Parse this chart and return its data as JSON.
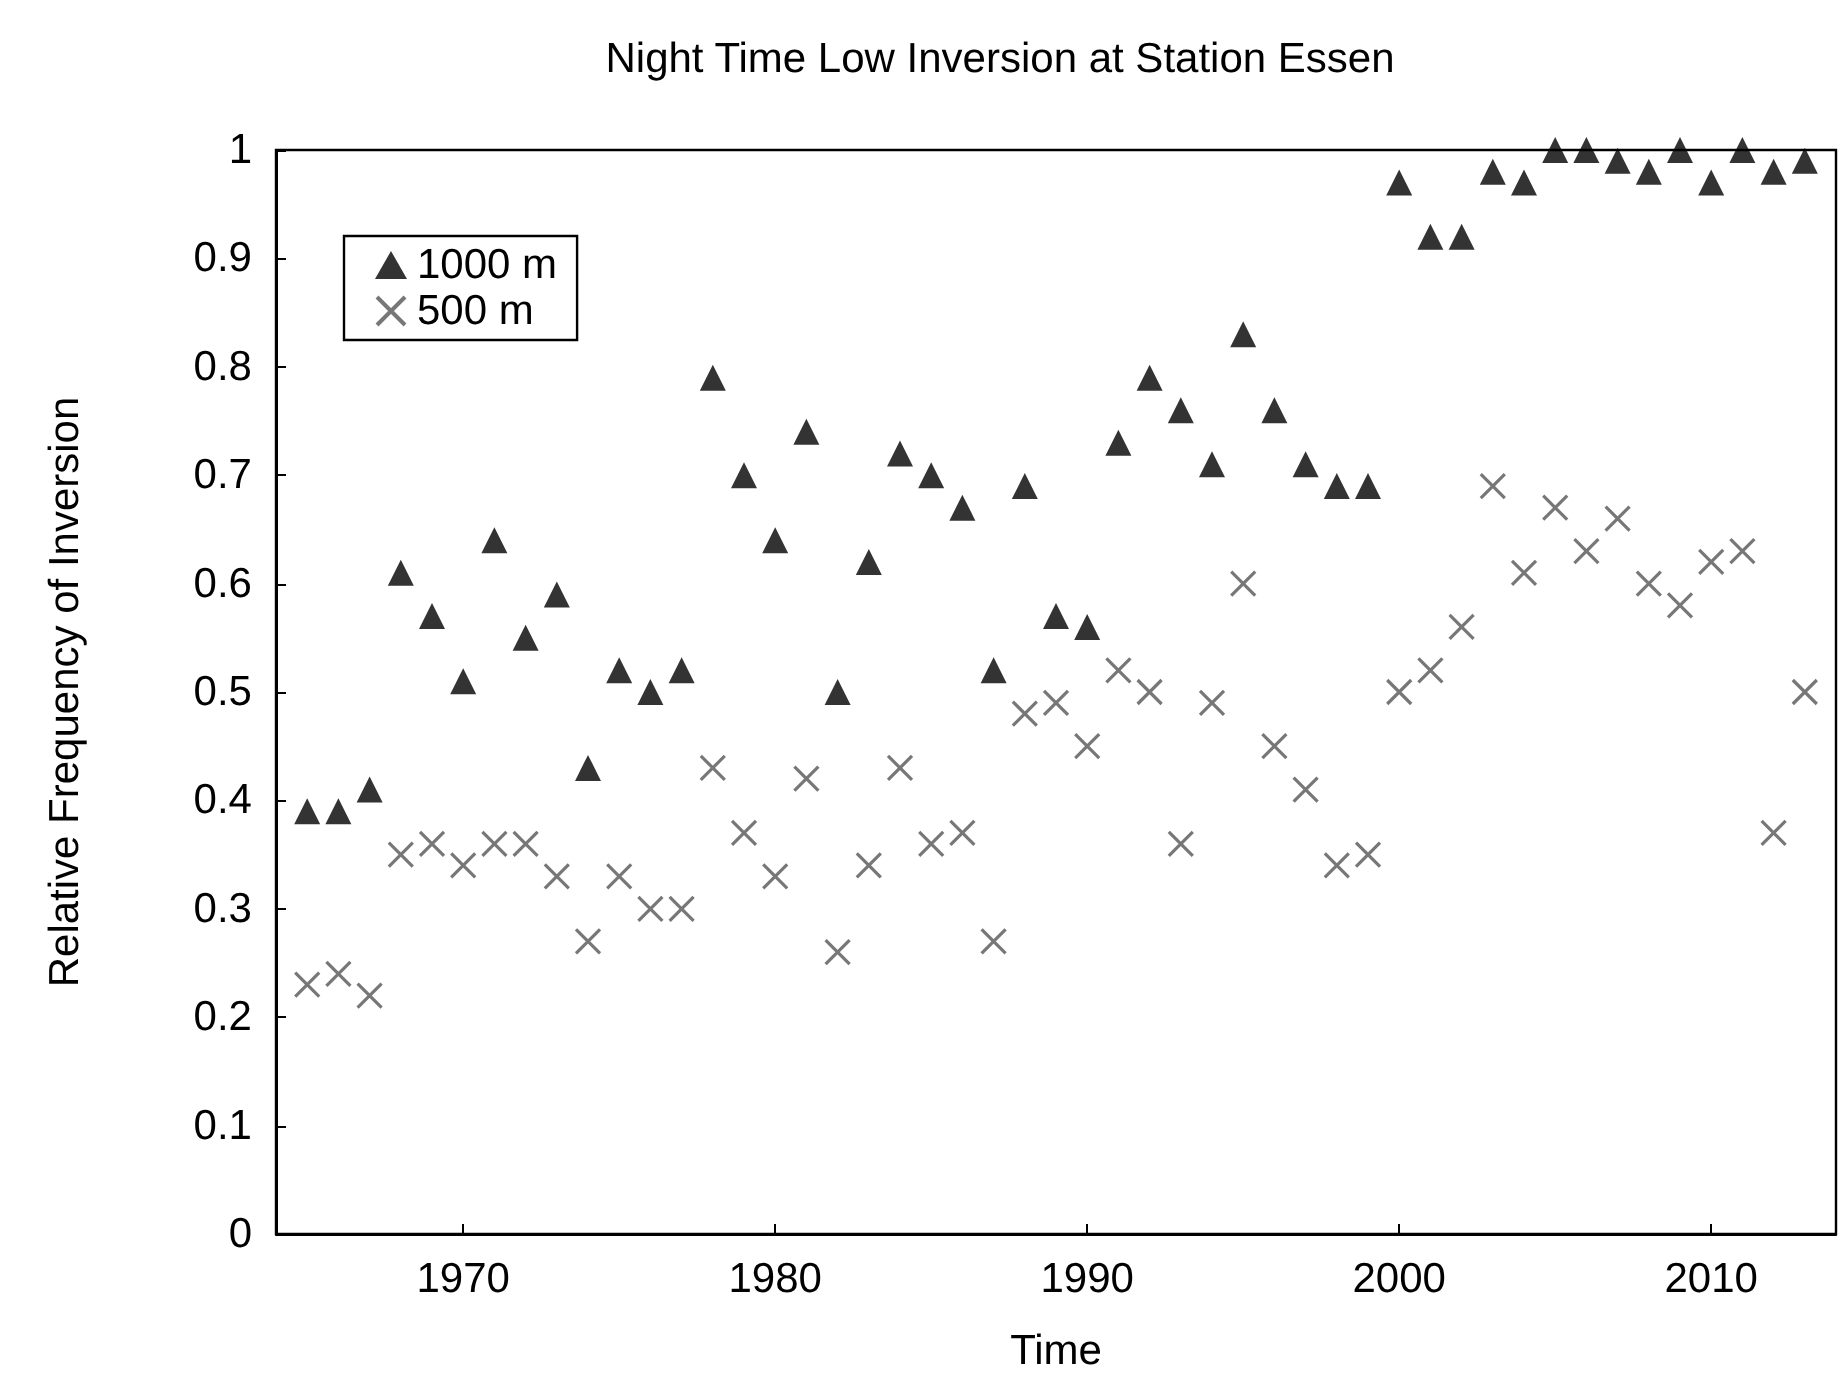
{
  "chart_data": {
    "type": "scatter",
    "title": "Night Time Low Inversion at Station Essen",
    "xlabel": "Time",
    "ylabel": "Relative Frequency of Inversion",
    "x": [
      1965,
      1966,
      1967,
      1968,
      1969,
      1970,
      1971,
      1972,
      1973,
      1974,
      1975,
      1976,
      1977,
      1978,
      1979,
      1980,
      1981,
      1982,
      1983,
      1984,
      1985,
      1986,
      1987,
      1988,
      1989,
      1990,
      1991,
      1992,
      1993,
      1994,
      1995,
      1996,
      1997,
      1998,
      1999,
      2000,
      2001,
      2002,
      2003,
      2004,
      2005,
      2006,
      2007,
      2008,
      2009,
      2010,
      2011,
      2012,
      2013
    ],
    "series": [
      {
        "name": "1000 m",
        "color": "#000000",
        "marker": "triangle",
        "values": [
          0.39,
          0.39,
          0.41,
          0.61,
          0.57,
          0.51,
          0.64,
          0.55,
          0.59,
          0.43,
          0.52,
          0.5,
          0.52,
          0.79,
          0.7,
          0.64,
          0.74,
          0.5,
          0.62,
          0.72,
          0.7,
          0.67,
          0.52,
          0.69,
          0.57,
          0.56,
          0.73,
          0.79,
          0.76,
          0.71,
          0.83,
          0.76,
          0.71,
          0.69,
          0.69,
          0.97,
          0.92,
          0.92,
          0.98,
          0.97,
          1.0,
          1.0,
          0.99,
          0.98,
          1.0,
          0.97,
          1.0,
          0.98,
          0.99
        ]
      },
      {
        "name": "500 m",
        "color": "#555555",
        "marker": "cross",
        "values": [
          0.23,
          0.24,
          0.22,
          0.35,
          0.36,
          0.34,
          0.36,
          0.36,
          0.33,
          0.27,
          0.33,
          0.3,
          0.3,
          0.43,
          0.37,
          0.33,
          0.42,
          0.26,
          0.34,
          0.43,
          0.36,
          0.37,
          0.27,
          0.48,
          0.49,
          0.45,
          0.52,
          0.5,
          0.36,
          0.49,
          0.6,
          0.45,
          0.41,
          0.34,
          0.35,
          0.5,
          0.52,
          0.56,
          0.69,
          0.61,
          0.67,
          0.63,
          0.66,
          0.6,
          0.58,
          0.62,
          0.63,
          0.37,
          0.5
        ]
      }
    ],
    "xlim": [
      1964,
      2014
    ],
    "xticks": [
      1970,
      1980,
      1990,
      2000,
      2010
    ],
    "ylim": [
      0,
      1
    ],
    "yticks": [
      0,
      0.1,
      0.2,
      0.3,
      0.4,
      0.5,
      0.6,
      0.7,
      0.8,
      0.9,
      1
    ],
    "grid": false,
    "legend": "top left"
  }
}
